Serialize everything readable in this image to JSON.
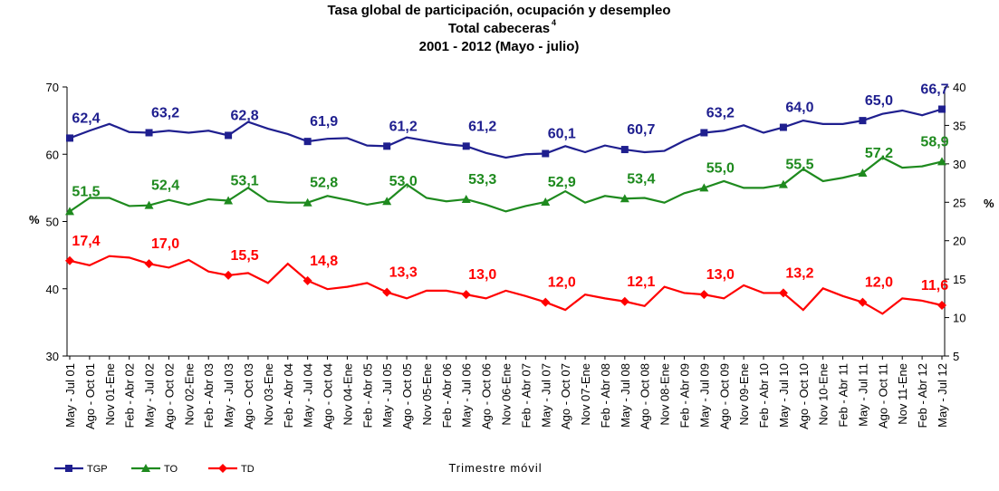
{
  "chart_data": {
    "type": "line",
    "title": "Tasa global de participación, ocupación y desempleo",
    "subtitle": "Total cabeceras",
    "subtitle_superscript": "4",
    "period": "2001 - 2012 (Mayo - julio)",
    "y_label": "%",
    "y2_label": "%",
    "x_label": "Trimestre móvil",
    "categories": [
      "May - Jul 01",
      "Ago - Oct 01",
      "Nov 01-Ene",
      "Feb - Abr 02",
      "May - Jul 02",
      "Ago - Oct 02",
      "Nov 02-Ene",
      "Feb - Abr 03",
      "May - Jul 03",
      "Ago - Oct 03",
      "Nov 03-Ene",
      "Feb - Abr 04",
      "May - Jul 04",
      "Ago - Oct 04",
      "Nov 04-Ene",
      "Feb - Abr 05",
      "May - Jul 05",
      "Ago - Oct 05",
      "Nov 05-Ene",
      "Feb - Abr 06",
      "May - Jul 06",
      "Ago - Oct 06",
      "Nov 06-Ene",
      "Feb - Abr 07",
      "May - Jul 07",
      "Ago - Oct 07",
      "Nov 07-Ene",
      "Feb - Abr 08",
      "May - Jul 08",
      "Ago - Oct 08",
      "Nov 08-Ene",
      "Feb - Abr 09",
      "May - Jul 09",
      "Ago - Oct 09",
      "Nov 09-Ene",
      "Feb - Abr 10",
      "May - Jul 10",
      "Ago - Oct 10",
      "Nov 10-Ene",
      "Feb - Abr 11",
      "May - Jul 11",
      "Ago - Oct 11",
      "Nov 11-Ene",
      "Feb - Abr 12",
      "May - Jul 12"
    ],
    "ylim": [
      30,
      70
    ],
    "yticks": [
      30,
      40,
      50,
      60,
      70
    ],
    "y2lim": [
      5,
      40
    ],
    "y2ticks": [
      5,
      10,
      15,
      20,
      25,
      30,
      35,
      40
    ],
    "series": [
      {
        "name": "TGP",
        "color": "#1f1f8f",
        "marker": "square",
        "values": [
          62.4,
          63.5,
          64.5,
          63.3,
          63.2,
          63.5,
          63.2,
          63.5,
          62.8,
          64.8,
          63.8,
          63.0,
          61.9,
          62.3,
          62.4,
          61.3,
          61.2,
          62.5,
          62.0,
          61.5,
          61.2,
          60.2,
          59.5,
          60.0,
          60.1,
          61.2,
          60.3,
          61.3,
          60.7,
          60.3,
          60.5,
          62.0,
          63.2,
          63.5,
          64.3,
          63.2,
          64.0,
          65.0,
          64.5,
          64.5,
          65.0,
          66.0,
          66.5,
          65.8,
          66.7
        ],
        "value_labels": [
          "62,4",
          null,
          null,
          null,
          "63,2",
          null,
          null,
          null,
          "62,8",
          null,
          null,
          null,
          "61,9",
          null,
          null,
          null,
          "61,2",
          null,
          null,
          null,
          "61,2",
          null,
          null,
          null,
          "60,1",
          null,
          null,
          null,
          "60,7",
          null,
          null,
          null,
          "63,2",
          null,
          null,
          null,
          "64,0",
          null,
          null,
          null,
          "65,0",
          null,
          null,
          null,
          "66,7"
        ]
      },
      {
        "name": "TO",
        "color": "#1e8a1e",
        "marker": "triangle",
        "values": [
          51.5,
          53.5,
          53.5,
          52.3,
          52.4,
          53.2,
          52.5,
          53.3,
          53.1,
          55.0,
          53.0,
          52.8,
          52.8,
          53.8,
          53.2,
          52.5,
          53.0,
          55.5,
          53.5,
          53.0,
          53.3,
          52.5,
          51.5,
          52.3,
          52.9,
          54.5,
          52.8,
          53.8,
          53.4,
          53.5,
          52.8,
          54.2,
          55.0,
          56.0,
          55.0,
          55.0,
          55.5,
          57.8,
          56.0,
          56.5,
          57.2,
          59.5,
          58.0,
          58.2,
          58.9
        ],
        "value_labels": [
          "51,5",
          null,
          null,
          null,
          "52,4",
          null,
          null,
          null,
          "53,1",
          null,
          null,
          null,
          "52,8",
          null,
          null,
          null,
          "53,0",
          null,
          null,
          null,
          "53,3",
          null,
          null,
          null,
          "52,9",
          null,
          null,
          null,
          "53,4",
          null,
          null,
          null,
          "55,0",
          null,
          null,
          null,
          "55,5",
          null,
          null,
          null,
          "57,2",
          null,
          null,
          null,
          "58,9"
        ]
      },
      {
        "name": "TD",
        "color": "#ff0000",
        "marker": "diamond",
        "axis": "y2",
        "values": [
          17.4,
          16.8,
          18.0,
          17.8,
          17.0,
          16.5,
          17.5,
          16.0,
          15.5,
          15.8,
          14.5,
          17.0,
          14.8,
          13.7,
          14.0,
          14.5,
          13.3,
          12.5,
          13.5,
          13.5,
          13.0,
          12.5,
          13.5,
          12.8,
          12.0,
          11.0,
          13.0,
          12.5,
          12.1,
          11.5,
          14.0,
          13.2,
          13.0,
          12.5,
          14.2,
          13.2,
          13.2,
          11.0,
          13.8,
          12.8,
          12.0,
          10.5,
          12.5,
          12.2,
          11.6
        ],
        "value_labels": [
          "17,4",
          null,
          null,
          null,
          "17,0",
          null,
          null,
          null,
          "15,5",
          null,
          null,
          null,
          "14,8",
          null,
          null,
          null,
          "13,3",
          null,
          null,
          null,
          "13,0",
          null,
          null,
          null,
          "12,0",
          null,
          null,
          null,
          "12,1",
          null,
          null,
          null,
          "13,0",
          null,
          null,
          null,
          "13,2",
          null,
          null,
          null,
          "12,0",
          null,
          null,
          null,
          "11,6"
        ]
      }
    ]
  }
}
